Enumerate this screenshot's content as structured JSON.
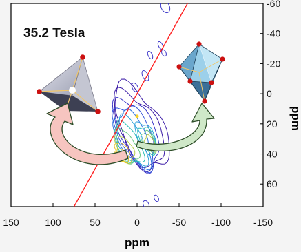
{
  "figure": {
    "field_label": "35.2 Tesla",
    "xlabel": "ppm",
    "ylabel": "ppm",
    "icons": {
      "left": "tetrahedron-icon",
      "right": "octahedron-icon"
    },
    "colors": {
      "frame": "#000000",
      "diagonal": "#ff2020",
      "arrow_left_fill": "#f7c5c0",
      "arrow_right_fill": "#cfe8c8",
      "arrow_stroke": "#2d4d28",
      "vertex": "#cc1111"
    }
  },
  "chart_data": {
    "type": "contour",
    "title": "",
    "xlabel": "ppm",
    "ylabel": "ppm",
    "xlim": [
      150,
      -150
    ],
    "ylim": [
      -60,
      75
    ],
    "x_reversed": true,
    "y_reversed": true,
    "xticks": [
      150,
      100,
      50,
      0,
      -50,
      -100,
      -150
    ],
    "yticks": [
      -60,
      -40,
      -20,
      0,
      20,
      40,
      60
    ],
    "diagonal": {
      "from": [
        75,
        75
      ],
      "to": [
        -60,
        -60
      ]
    },
    "peaks": [
      {
        "label": "tetrahedral site",
        "x": 25,
        "y": 40
      },
      {
        "label": "octahedral site",
        "x": 0,
        "y": 15
      }
    ]
  }
}
